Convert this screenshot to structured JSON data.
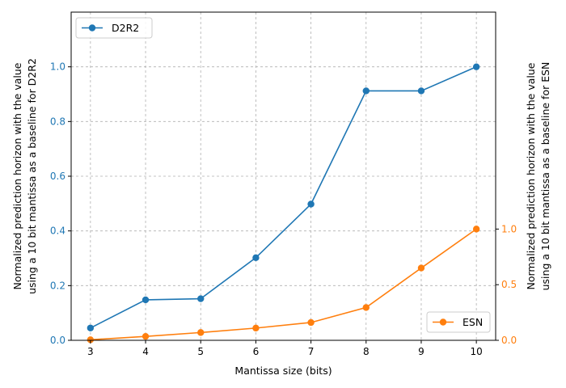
{
  "chart_data": {
    "type": "line",
    "xlabel": "Mantissa size (bits)",
    "ylabel_left": [
      "Normalized prediction horizon with the value",
      "using a 10 bit mantissa as a baseline for D2R2"
    ],
    "ylabel_right": [
      "Normalized prediction horizon with the value",
      "using a 10 bit mantissa as a baseline for ESN"
    ],
    "x": [
      3,
      4,
      5,
      6,
      7,
      8,
      9,
      10
    ],
    "xlim": [
      2.65,
      10.35
    ],
    "ylim_left": [
      0.0,
      1.2
    ],
    "ylim_right": [
      0.0,
      2.95
    ],
    "xticks": [
      "3",
      "4",
      "5",
      "6",
      "7",
      "8",
      "9",
      "10"
    ],
    "yticks_left": [
      "0.0",
      "0.2",
      "0.4",
      "0.6",
      "0.8",
      "1.0"
    ],
    "yticks_right": [
      "0.0",
      "0.5",
      "1.0"
    ],
    "grid": true,
    "series": [
      {
        "name": "D2R2",
        "axis": "left",
        "color": "#1f77b4",
        "values": [
          0.045,
          0.148,
          0.152,
          0.302,
          0.498,
          0.912,
          0.912,
          1.0
        ],
        "legend_position": "upper-left"
      },
      {
        "name": "ESN",
        "axis": "right",
        "color": "#ff7f0e",
        "values": [
          0.005,
          0.035,
          0.07,
          0.11,
          0.16,
          0.295,
          0.65,
          1.0
        ],
        "legend_position": "lower-right"
      }
    ]
  }
}
